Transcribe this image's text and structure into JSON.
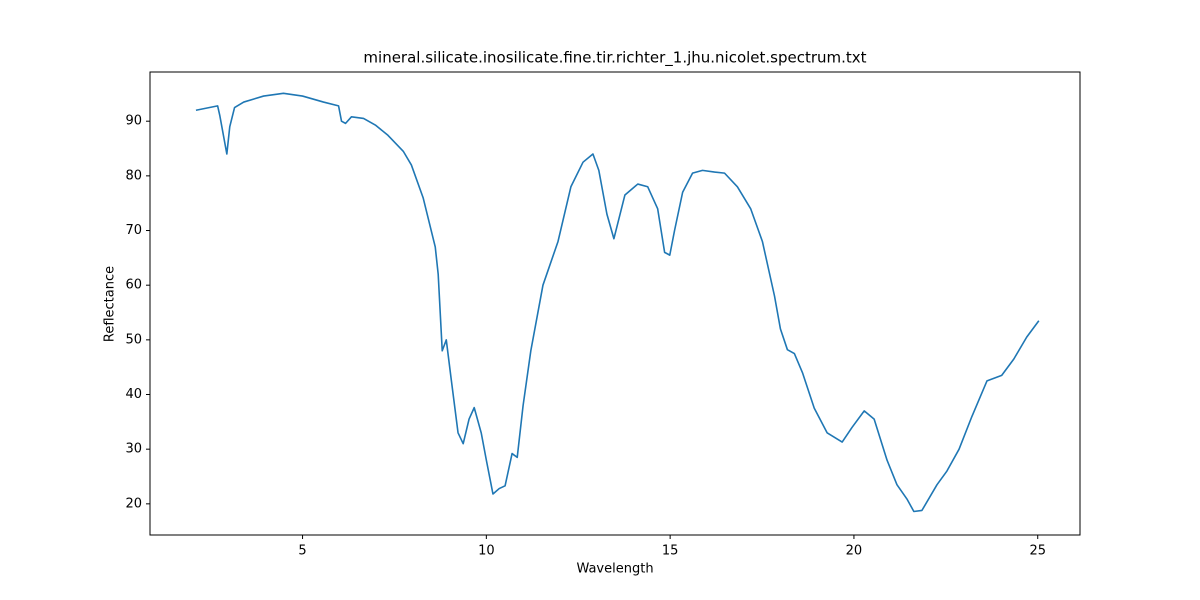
{
  "chart_data": {
    "type": "line",
    "title": "mineral.silicate.inosilicate.fine.tir.richter_1.jhu.nicolet.spectrum.txt",
    "x_label": "Wavelength",
    "y_label": "Reflectance",
    "x": [
      2.1,
      2.69,
      2.75,
      2.94,
      3.02,
      3.15,
      3.4,
      3.94,
      4.48,
      5.0,
      5.57,
      5.98,
      6.06,
      6.17,
      6.33,
      6.66,
      6.98,
      7.31,
      7.74,
      7.96,
      8.28,
      8.61,
      8.69,
      8.8,
      8.91,
      9.04,
      9.23,
      9.37,
      9.53,
      9.67,
      9.86,
      10.0,
      10.18,
      10.35,
      10.51,
      10.7,
      10.84,
      11.0,
      11.21,
      11.54,
      11.95,
      12.3,
      12.63,
      12.9,
      13.06,
      13.28,
      13.47,
      13.77,
      14.12,
      14.39,
      14.66,
      14.85,
      14.99,
      15.12,
      15.34,
      15.61,
      15.88,
      16.21,
      16.48,
      16.83,
      17.19,
      17.51,
      17.84,
      18.0,
      18.19,
      18.38,
      18.6,
      18.92,
      19.27,
      19.68,
      19.95,
      20.28,
      20.55,
      20.9,
      21.17,
      21.45,
      21.63,
      21.85,
      22.26,
      22.53,
      22.86,
      23.21,
      23.62,
      24.02,
      24.35,
      24.7,
      25.03
    ],
    "values": [
      92,
      92.8,
      91,
      84,
      89,
      92.5,
      93.5,
      94.6,
      95.1,
      94.6,
      93.5,
      92.8,
      90,
      89.6,
      90.8,
      90.5,
      89.3,
      87.5,
      84.5,
      82,
      76,
      67,
      62,
      48,
      50,
      43,
      33,
      31,
      35.5,
      37.6,
      33,
      28,
      21.8,
      22.8,
      23.3,
      29.2,
      28.5,
      38,
      48,
      60,
      68,
      78,
      82.5,
      84,
      81,
      73,
      68.5,
      76.5,
      78.5,
      78,
      74,
      66,
      65.5,
      70,
      77,
      80.5,
      81,
      80.7,
      80.5,
      78,
      74,
      68,
      58,
      52,
      48.2,
      47.5,
      44,
      37.5,
      33,
      31.3,
      34,
      37,
      35.5,
      28,
      23.5,
      20.8,
      18.6,
      18.8,
      23.5,
      26,
      30,
      36,
      42.5,
      43.5,
      46.5,
      50.5,
      53.5
    ],
    "color": "#1f77b4",
    "xlim": [
      0.85,
      26.15
    ],
    "xticks": [
      5,
      10,
      15,
      20,
      25
    ],
    "ylim": [
      14.3,
      99
    ],
    "yticks": [
      20,
      30,
      40,
      50,
      60,
      70,
      80,
      90
    ],
    "grid": false
  }
}
